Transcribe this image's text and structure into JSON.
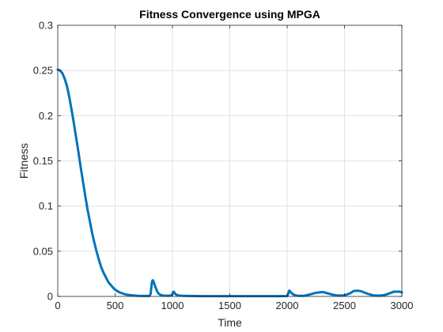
{
  "chart_data": {
    "type": "line",
    "title": "Fitness Convergence using MPGA",
    "xlabel": "Time",
    "ylabel": "Fitness",
    "xlim": [
      0,
      3000
    ],
    "ylim": [
      0,
      0.3
    ],
    "x_ticks": [
      0,
      500,
      1000,
      1500,
      2000,
      2500,
      3000
    ],
    "x_tick_labels": [
      "0",
      "500",
      "1000",
      "1500",
      "2000",
      "2500",
      "3000"
    ],
    "y_ticks": [
      0,
      0.05,
      0.1,
      0.15,
      0.2,
      0.25,
      0.3
    ],
    "y_tick_labels": [
      "0",
      "0.05",
      "0.1",
      "0.15",
      "0.2",
      "0.25",
      "0.3"
    ],
    "grid": true,
    "box": true,
    "series": [
      {
        "color": "#0072BD",
        "x": [
          0,
          20,
          40,
          60,
          80,
          100,
          120,
          140,
          160,
          180,
          200,
          220,
          240,
          260,
          280,
          300,
          320,
          340,
          360,
          380,
          400,
          420,
          440,
          460,
          480,
          500,
          520,
          540,
          560,
          580,
          600,
          650,
          700,
          750,
          800,
          810,
          815,
          820,
          825,
          830,
          835,
          840,
          850,
          860,
          870,
          880,
          900,
          930,
          960,
          990,
          1000,
          1005,
          1010,
          1015,
          1020,
          1030,
          1040,
          1060,
          1100,
          1200,
          1300,
          1400,
          1500,
          1600,
          1700,
          1800,
          1900,
          2000,
          2010,
          2015,
          2020,
          2025,
          2030,
          2045,
          2060,
          2080,
          2100,
          2150,
          2200,
          2250,
          2300,
          2320,
          2350,
          2400,
          2450,
          2500,
          2550,
          2580,
          2620,
          2650,
          2700,
          2750,
          2800,
          2850,
          2900,
          2930,
          2960,
          2980,
          3000
        ],
        "y": [
          0.251,
          0.25,
          0.247,
          0.241,
          0.233,
          0.221,
          0.207,
          0.192,
          0.176,
          0.16,
          0.143,
          0.127,
          0.111,
          0.096,
          0.083,
          0.07,
          0.059,
          0.049,
          0.04,
          0.032,
          0.026,
          0.021,
          0.016,
          0.013,
          0.01,
          0.0075,
          0.0058,
          0.0045,
          0.0035,
          0.0027,
          0.002,
          0.0012,
          0.0007,
          0.0005,
          0.0005,
          0.003,
          0.009,
          0.015,
          0.0175,
          0.0178,
          0.0165,
          0.0145,
          0.011,
          0.0075,
          0.0048,
          0.003,
          0.0014,
          0.0009,
          0.0008,
          0.001,
          0.0025,
          0.0048,
          0.0052,
          0.0045,
          0.0035,
          0.0022,
          0.0015,
          0.001,
          0.0006,
          0.0004,
          0.0003,
          0.0003,
          0.0003,
          0.0003,
          0.0003,
          0.0003,
          0.0003,
          0.0004,
          0.003,
          0.0058,
          0.0065,
          0.0058,
          0.0048,
          0.003,
          0.0018,
          0.001,
          0.0006,
          0.0008,
          0.0022,
          0.004,
          0.0048,
          0.0046,
          0.0035,
          0.0018,
          0.0009,
          0.0012,
          0.0035,
          0.006,
          0.0063,
          0.0055,
          0.003,
          0.0012,
          0.0008,
          0.0015,
          0.0038,
          0.0052,
          0.0054,
          0.0052,
          0.0045
        ]
      }
    ]
  }
}
